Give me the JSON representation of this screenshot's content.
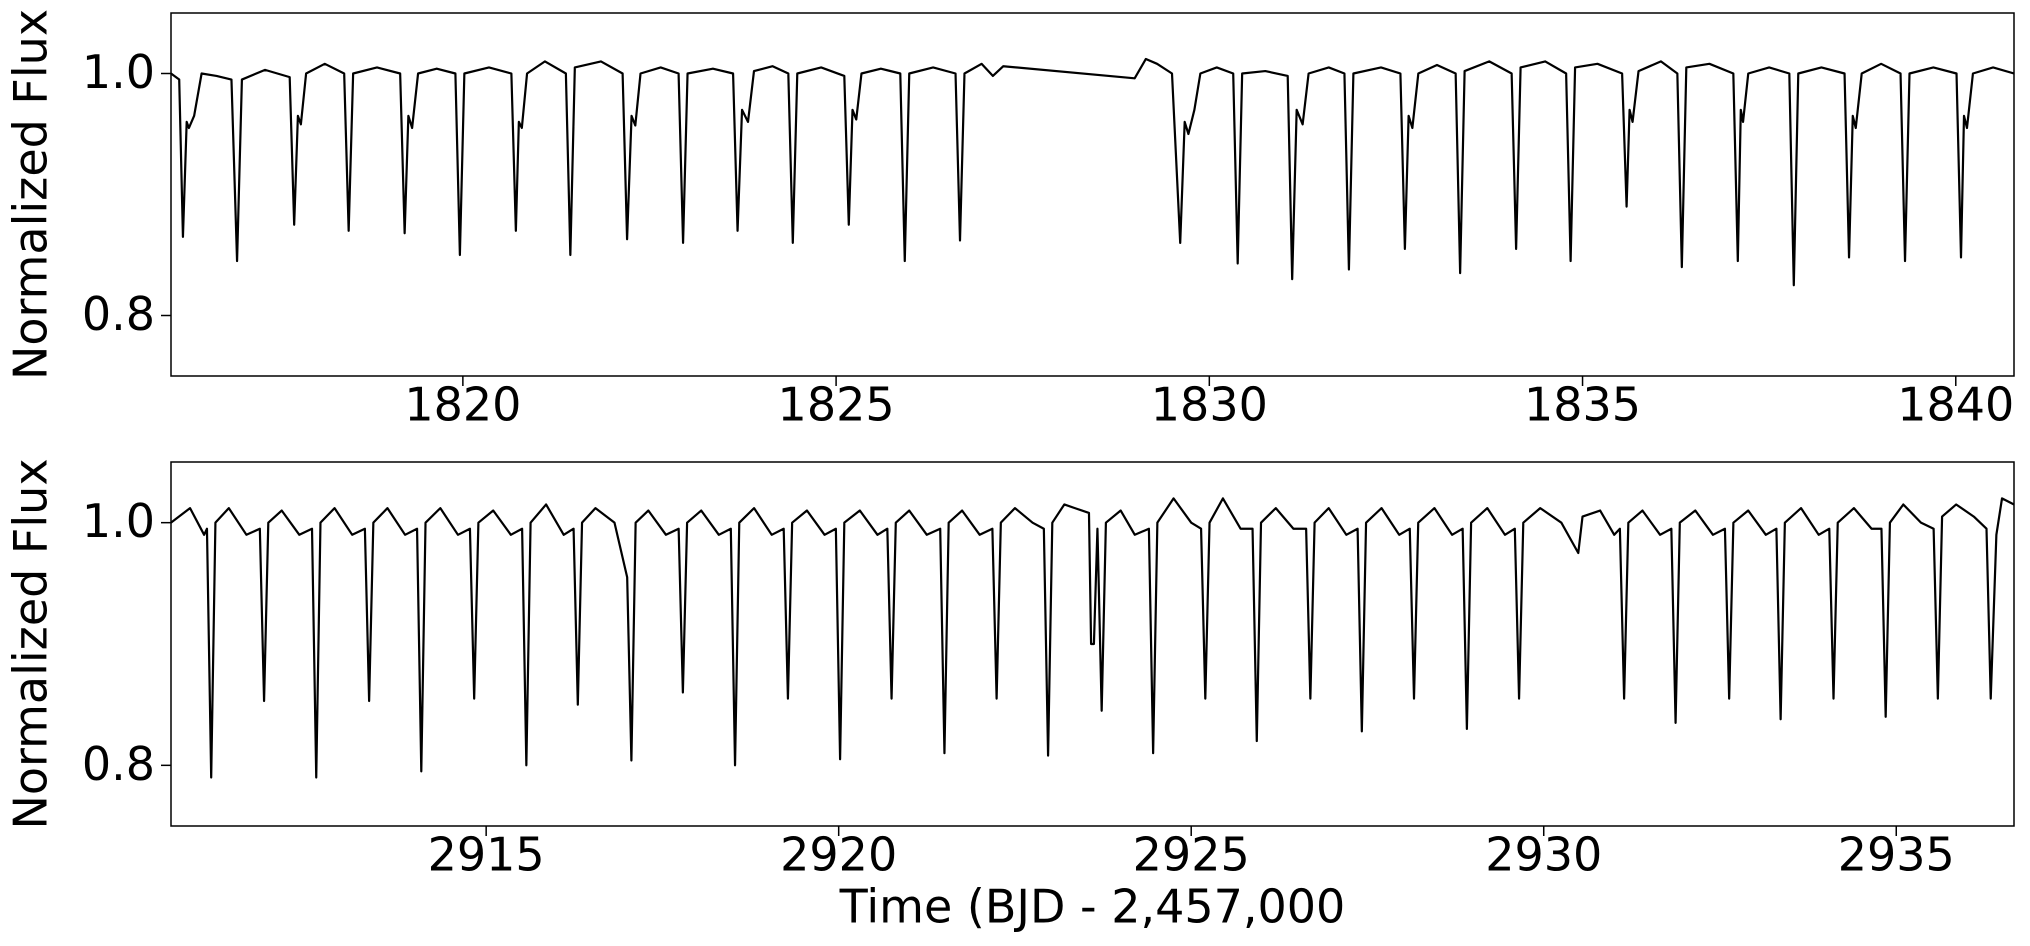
{
  "chart_data": [
    {
      "type": "line",
      "ylabel": "Normalized Flux",
      "xlim": [
        1816.09,
        1840.78
      ],
      "ylim": [
        0.75,
        1.05
      ],
      "xticks": [
        1820,
        1825,
        1830,
        1835,
        1840
      ],
      "yticks": [
        0.8,
        {
          "value": 1.0,
          "label": "1.0"
        }
      ],
      "color": "#000000",
      "x": [
        1816.09,
        1816.2,
        1816.25,
        1816.3,
        1816.33,
        1816.4,
        1816.5,
        1816.7,
        1816.9,
        1816.975,
        1817.04,
        1817.35,
        1817.68,
        1817.74,
        1817.79,
        1817.83,
        1817.9,
        1818.15,
        1818.41,
        1818.47,
        1818.53,
        1818.85,
        1819.16,
        1819.22,
        1819.27,
        1819.32,
        1819.4,
        1819.65,
        1819.9,
        1819.96,
        1820.02,
        1820.35,
        1820.65,
        1820.71,
        1820.75,
        1820.79,
        1820.86,
        1821.1,
        1821.38,
        1821.44,
        1821.5,
        1821.85,
        1822.14,
        1822.2,
        1822.26,
        1822.31,
        1822.38,
        1822.65,
        1822.89,
        1822.95,
        1823.01,
        1823.35,
        1823.62,
        1823.68,
        1823.74,
        1823.82,
        1823.9,
        1824.15,
        1824.36,
        1824.42,
        1824.48,
        1824.8,
        1825.11,
        1825.17,
        1825.22,
        1825.27,
        1825.34,
        1825.6,
        1825.86,
        1825.92,
        1825.98,
        1826.3,
        1826.6,
        1826.66,
        1826.72,
        1826.95,
        1827.1,
        1827.24,
        1829.0,
        1829.15,
        1829.3,
        1829.5,
        1829.61,
        1829.67,
        1829.72,
        1829.8,
        1829.88,
        1830.1,
        1830.32,
        1830.38,
        1830.44,
        1830.75,
        1831.05,
        1831.11,
        1831.17,
        1831.25,
        1831.33,
        1831.6,
        1831.81,
        1831.87,
        1831.93,
        1832.3,
        1832.56,
        1832.62,
        1832.67,
        1832.72,
        1832.8,
        1833.05,
        1833.3,
        1833.36,
        1833.42,
        1833.75,
        1834.05,
        1834.11,
        1834.17,
        1834.5,
        1834.78,
        1834.84,
        1834.9,
        1835.2,
        1835.53,
        1835.59,
        1835.63,
        1835.67,
        1835.75,
        1836.05,
        1836.27,
        1836.33,
        1836.39,
        1836.7,
        1837.02,
        1837.08,
        1837.12,
        1837.15,
        1837.22,
        1837.5,
        1837.77,
        1837.83,
        1837.89,
        1838.2,
        1838.51,
        1838.57,
        1838.62,
        1838.66,
        1838.74,
        1839.0,
        1839.26,
        1839.32,
        1839.38,
        1839.7,
        1840.01,
        1840.07,
        1840.11,
        1840.15,
        1840.23,
        1840.5,
        1840.78
      ],
      "y": [
        1.0,
        0.995,
        0.865,
        0.96,
        0.955,
        0.965,
        1.0,
        0.998,
        0.995,
        0.845,
        0.995,
        1.003,
        0.997,
        0.875,
        0.965,
        0.958,
        1.0,
        1.008,
        1.0,
        0.87,
        1.0,
        1.005,
        1.0,
        0.868,
        0.965,
        0.955,
        1.0,
        1.004,
        1.0,
        0.85,
        1.0,
        1.005,
        1.0,
        0.87,
        0.96,
        0.955,
        1.0,
        1.01,
        1.0,
        0.85,
        1.005,
        1.01,
        1.0,
        0.863,
        0.965,
        0.957,
        1.0,
        1.005,
        1.0,
        0.86,
        1.0,
        1.004,
        1.0,
        0.87,
        0.97,
        0.96,
        1.002,
        1.006,
        1.0,
        0.86,
        1.0,
        1.005,
        0.998,
        0.875,
        0.97,
        0.962,
        1.0,
        1.004,
        1.0,
        0.845,
        1.0,
        1.005,
        1.0,
        0.862,
        1.0,
        1.008,
        0.998,
        1.006,
        0.996,
        1.012,
        1.008,
        1.0,
        0.86,
        0.96,
        0.95,
        0.97,
        1.0,
        1.005,
        1.0,
        0.843,
        1.0,
        1.002,
        0.998,
        0.83,
        0.97,
        0.958,
        1.0,
        1.005,
        1.0,
        0.838,
        1.0,
        1.005,
        1.0,
        0.855,
        0.965,
        0.955,
        1.0,
        1.007,
        1.0,
        0.835,
        1.002,
        1.01,
        1.0,
        0.855,
        1.005,
        1.01,
        1.0,
        0.845,
        1.005,
        1.008,
        1.0,
        0.89,
        0.97,
        0.96,
        1.002,
        1.01,
        1.0,
        0.84,
        1.005,
        1.008,
        1.0,
        0.845,
        0.97,
        0.96,
        1.0,
        1.005,
        1.0,
        0.825,
        1.0,
        1.005,
        1.0,
        0.848,
        0.965,
        0.955,
        1.0,
        1.008,
        1.0,
        0.845,
        1.0,
        1.005,
        1.0,
        0.848,
        0.965,
        0.955,
        1.0,
        1.005,
        1.0
      ]
    },
    {
      "type": "line",
      "ylabel": "Normalized Flux",
      "xlabel": "Time (BJD - 2,457,000",
      "xlim": [
        2910.53,
        2936.67
      ],
      "ylim": [
        0.75,
        1.05
      ],
      "xticks": [
        2915,
        2920,
        2925,
        2930,
        2935
      ],
      "yticks": [
        0.8,
        {
          "value": 1.0,
          "label": "1.0"
        }
      ],
      "color": "#000000",
      "x": [
        2910.53,
        2910.8,
        2911.0,
        2911.04,
        2911.1,
        2911.16,
        2911.35,
        2911.6,
        2911.79,
        2911.85,
        2911.91,
        2912.1,
        2912.35,
        2912.53,
        2912.59,
        2912.65,
        2912.85,
        2913.1,
        2913.28,
        2913.34,
        2913.4,
        2913.6,
        2913.85,
        2914.02,
        2914.08,
        2914.14,
        2914.35,
        2914.6,
        2914.77,
        2914.83,
        2914.89,
        2915.1,
        2915.35,
        2915.51,
        2915.57,
        2915.63,
        2915.85,
        2916.1,
        2916.24,
        2916.3,
        2916.36,
        2916.55,
        2916.82,
        2917.0,
        2917.06,
        2917.12,
        2917.3,
        2917.55,
        2917.73,
        2917.79,
        2917.85,
        2918.05,
        2918.3,
        2918.47,
        2918.53,
        2918.59,
        2918.8,
        2919.05,
        2919.22,
        2919.28,
        2919.34,
        2919.55,
        2919.8,
        2919.96,
        2920.02,
        2920.08,
        2920.3,
        2920.55,
        2920.69,
        2920.75,
        2920.81,
        2921.0,
        2921.25,
        2921.44,
        2921.5,
        2921.56,
        2921.75,
        2922.0,
        2922.18,
        2922.24,
        2922.3,
        2922.5,
        2922.75,
        2922.91,
        2922.97,
        2923.03,
        2923.2,
        2923.35,
        2923.55,
        2923.58,
        2923.62,
        2923.67,
        2923.73,
        2923.79,
        2924.0,
        2924.2,
        2924.4,
        2924.46,
        2924.52,
        2924.75,
        2925.0,
        2925.14,
        2925.2,
        2925.26,
        2925.45,
        2925.7,
        2925.87,
        2925.93,
        2925.99,
        2926.2,
        2926.45,
        2926.63,
        2926.69,
        2926.75,
        2926.95,
        2927.2,
        2927.36,
        2927.42,
        2927.48,
        2927.7,
        2927.95,
        2928.1,
        2928.16,
        2928.22,
        2928.45,
        2928.7,
        2928.85,
        2928.91,
        2928.97,
        2929.2,
        2929.45,
        2929.59,
        2929.65,
        2929.71,
        2929.95,
        2930.25,
        2930.49,
        2930.55,
        2930.8,
        2931.0,
        2931.08,
        2931.14,
        2931.2,
        2931.4,
        2931.65,
        2931.81,
        2931.87,
        2931.93,
        2932.15,
        2932.4,
        2932.57,
        2932.63,
        2932.69,
        2932.9,
        2933.15,
        2933.3,
        2933.36,
        2933.42,
        2933.65,
        2933.9,
        2934.05,
        2934.11,
        2934.17,
        2934.4,
        2934.65,
        2934.79,
        2934.85,
        2934.91,
        2935.1,
        2935.35,
        2935.53,
        2935.59,
        2935.65,
        2935.85,
        2936.1,
        2936.28,
        2936.34,
        2936.42,
        2936.5,
        2936.67
      ],
      "y": [
        1.0,
        1.012,
        0.99,
        0.995,
        0.79,
        1.0,
        1.012,
        0.99,
        0.995,
        0.853,
        1.0,
        1.01,
        0.99,
        0.995,
        0.79,
        1.0,
        1.012,
        0.99,
        0.995,
        0.853,
        1.0,
        1.012,
        0.99,
        0.995,
        0.795,
        1.0,
        1.012,
        0.99,
        0.995,
        0.855,
        1.0,
        1.01,
        0.99,
        0.995,
        0.8,
        1.0,
        1.015,
        0.99,
        0.995,
        0.85,
        1.0,
        1.012,
        1.0,
        0.955,
        0.804,
        1.0,
        1.01,
        0.99,
        0.995,
        0.86,
        1.0,
        1.01,
        0.99,
        0.995,
        0.8,
        1.0,
        1.012,
        0.99,
        0.995,
        0.855,
        1.0,
        1.01,
        0.99,
        0.995,
        0.805,
        1.0,
        1.01,
        0.99,
        0.995,
        0.855,
        1.0,
        1.01,
        0.99,
        0.995,
        0.81,
        1.0,
        1.01,
        0.99,
        0.995,
        0.855,
        1.0,
        1.012,
        1.0,
        0.995,
        0.808,
        1.0,
        1.015,
        1.012,
        1.008,
        0.9,
        0.9,
        0.995,
        0.845,
        1.0,
        1.01,
        0.99,
        0.995,
        0.81,
        1.0,
        1.02,
        1.0,
        0.995,
        0.855,
        1.0,
        1.02,
        0.995,
        0.995,
        0.82,
        1.0,
        1.012,
        0.995,
        0.995,
        0.855,
        1.0,
        1.012,
        0.99,
        0.995,
        0.828,
        1.0,
        1.012,
        0.99,
        0.995,
        0.855,
        1.0,
        1.012,
        0.99,
        0.995,
        0.83,
        1.0,
        1.012,
        0.99,
        0.995,
        0.855,
        1.0,
        1.012,
        1.0,
        0.975,
        1.005,
        1.01,
        0.99,
        0.995,
        0.855,
        1.0,
        1.01,
        0.99,
        0.995,
        0.835,
        1.0,
        1.01,
        0.99,
        0.995,
        0.855,
        1.0,
        1.01,
        0.99,
        0.995,
        0.838,
        1.0,
        1.012,
        0.99,
        0.995,
        0.855,
        1.0,
        1.012,
        0.995,
        0.995,
        0.84,
        1.0,
        1.015,
        1.0,
        0.995,
        0.855,
        1.005,
        1.015,
        1.005,
        0.995,
        0.855,
        0.99,
        1.02,
        1.015
      ]
    }
  ]
}
